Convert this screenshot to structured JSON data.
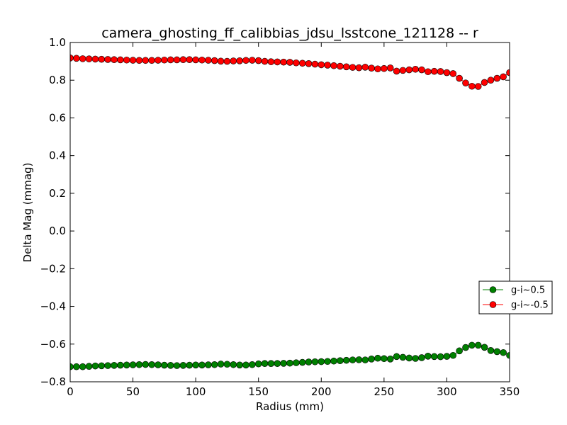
{
  "chart_data": {
    "type": "line",
    "title": "camera_ghosting_ff_calibbias_jdsu_lsstcone_121128 -- r",
    "xlabel": "Radius (mm)",
    "ylabel": "Delta Mag (mmag)",
    "xlim": [
      0,
      350
    ],
    "ylim": [
      -0.8,
      1.0
    ],
    "xticks": [
      0,
      50,
      100,
      150,
      200,
      250,
      300,
      350
    ],
    "yticks": [
      -0.8,
      -0.6,
      -0.4,
      -0.2,
      0.0,
      0.2,
      0.4,
      0.6,
      0.8,
      1.0
    ],
    "xtick_labels": [
      "0",
      "50",
      "100",
      "150",
      "200",
      "250",
      "300",
      "350"
    ],
    "ytick_labels": [
      "−0.8",
      "−0.6",
      "−0.4",
      "−0.2",
      "0.0",
      "0.2",
      "0.4",
      "0.6",
      "0.8",
      "1.0"
    ],
    "grid": false,
    "legend_position": "right",
    "x": [
      0,
      5,
      10,
      15,
      20,
      25,
      30,
      35,
      40,
      45,
      50,
      55,
      60,
      65,
      70,
      75,
      80,
      85,
      90,
      95,
      100,
      105,
      110,
      115,
      120,
      125,
      130,
      135,
      140,
      145,
      150,
      155,
      160,
      165,
      170,
      175,
      180,
      185,
      190,
      195,
      200,
      205,
      210,
      215,
      220,
      225,
      230,
      235,
      240,
      245,
      250,
      255,
      260,
      265,
      270,
      275,
      280,
      285,
      290,
      295,
      300,
      305,
      310,
      315,
      320,
      325,
      330,
      335,
      340,
      345,
      350
    ],
    "series": [
      {
        "name": "g-i~0.5",
        "color": "#008000",
        "values": [
          -0.72,
          -0.72,
          -0.72,
          -0.718,
          -0.716,
          -0.715,
          -0.714,
          -0.713,
          -0.712,
          -0.711,
          -0.71,
          -0.709,
          -0.708,
          -0.709,
          -0.71,
          -0.712,
          -0.713,
          -0.714,
          -0.713,
          -0.712,
          -0.711,
          -0.711,
          -0.71,
          -0.709,
          -0.706,
          -0.707,
          -0.709,
          -0.711,
          -0.711,
          -0.709,
          -0.705,
          -0.703,
          -0.703,
          -0.703,
          -0.702,
          -0.701,
          -0.699,
          -0.697,
          -0.695,
          -0.694,
          -0.693,
          -0.692,
          -0.69,
          -0.688,
          -0.686,
          -0.684,
          -0.683,
          -0.684,
          -0.679,
          -0.675,
          -0.677,
          -0.679,
          -0.666,
          -0.67,
          -0.674,
          -0.676,
          -0.672,
          -0.664,
          -0.666,
          -0.667,
          -0.665,
          -0.66,
          -0.636,
          -0.618,
          -0.606,
          -0.606,
          -0.617,
          -0.634,
          -0.64,
          -0.645,
          -0.66
        ]
      },
      {
        "name": "g-i~-0.5",
        "color": "#ff0000",
        "values": [
          0.918,
          0.916,
          0.914,
          0.913,
          0.912,
          0.911,
          0.91,
          0.909,
          0.908,
          0.907,
          0.906,
          0.905,
          0.905,
          0.905,
          0.906,
          0.907,
          0.908,
          0.908,
          0.909,
          0.909,
          0.908,
          0.907,
          0.906,
          0.904,
          0.901,
          0.9,
          0.902,
          0.903,
          0.905,
          0.906,
          0.904,
          0.9,
          0.898,
          0.897,
          0.896,
          0.895,
          0.892,
          0.89,
          0.888,
          0.885,
          0.882,
          0.88,
          0.877,
          0.874,
          0.871,
          0.868,
          0.866,
          0.869,
          0.864,
          0.86,
          0.862,
          0.865,
          0.848,
          0.852,
          0.855,
          0.858,
          0.855,
          0.845,
          0.847,
          0.846,
          0.84,
          0.835,
          0.81,
          0.785,
          0.768,
          0.767,
          0.788,
          0.8,
          0.81,
          0.818,
          0.84
        ]
      }
    ]
  }
}
